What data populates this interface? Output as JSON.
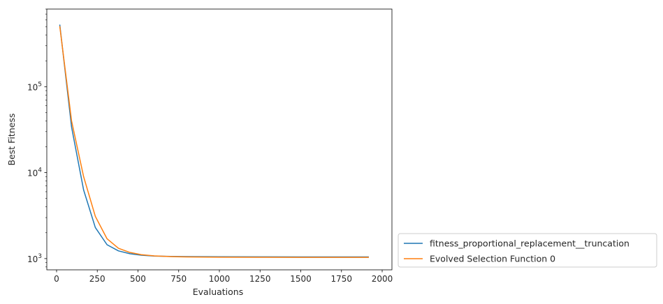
{
  "chart_data": {
    "type": "line",
    "xlabel": "Evaluations",
    "ylabel": "Best Fitness",
    "xscale": "linear",
    "yscale": "log",
    "xlim": [
      -60,
      2060
    ],
    "ylim": [
      740,
      800000
    ],
    "grid": false,
    "legend_position": "outside-right-bottom",
    "x_ticks": [
      {
        "value": 0,
        "label": "0"
      },
      {
        "value": 250,
        "label": "250"
      },
      {
        "value": 500,
        "label": "500"
      },
      {
        "value": 750,
        "label": "750"
      },
      {
        "value": 1000,
        "label": "1000"
      },
      {
        "value": 1250,
        "label": "1250"
      },
      {
        "value": 1500,
        "label": "1500"
      },
      {
        "value": 1750,
        "label": "1750"
      },
      {
        "value": 2000,
        "label": "2000"
      }
    ],
    "y_ticks": [
      {
        "value": 1000,
        "base": "10",
        "exp": "3"
      },
      {
        "value": 10000,
        "base": "10",
        "exp": "4"
      },
      {
        "value": 100000,
        "base": "10",
        "exp": "5"
      }
    ],
    "series": [
      {
        "name": "fitness_proportional_replacement__truncation",
        "color": "#1f77b4",
        "points": [
          [
            20,
            520000
          ],
          [
            92,
            34000
          ],
          [
            166,
            6300
          ],
          [
            238,
            2300
          ],
          [
            310,
            1450
          ],
          [
            380,
            1230
          ],
          [
            450,
            1140
          ],
          [
            520,
            1095
          ],
          [
            600,
            1070
          ],
          [
            700,
            1060
          ],
          [
            800,
            1055
          ],
          [
            1000,
            1050
          ],
          [
            1250,
            1047
          ],
          [
            1500,
            1046
          ],
          [
            1750,
            1045
          ],
          [
            1915,
            1045
          ]
        ]
      },
      {
        "name": "Evolved Selection Function 0",
        "color": "#ff7f0e",
        "points": [
          [
            20,
            500000
          ],
          [
            92,
            40000
          ],
          [
            166,
            9000
          ],
          [
            238,
            3100
          ],
          [
            310,
            1700
          ],
          [
            380,
            1320
          ],
          [
            450,
            1180
          ],
          [
            520,
            1110
          ],
          [
            600,
            1075
          ],
          [
            700,
            1055
          ],
          [
            800,
            1045
          ],
          [
            1000,
            1038
          ],
          [
            1250,
            1035
          ],
          [
            1500,
            1034
          ],
          [
            1750,
            1033
          ],
          [
            1915,
            1033
          ]
        ]
      }
    ]
  }
}
